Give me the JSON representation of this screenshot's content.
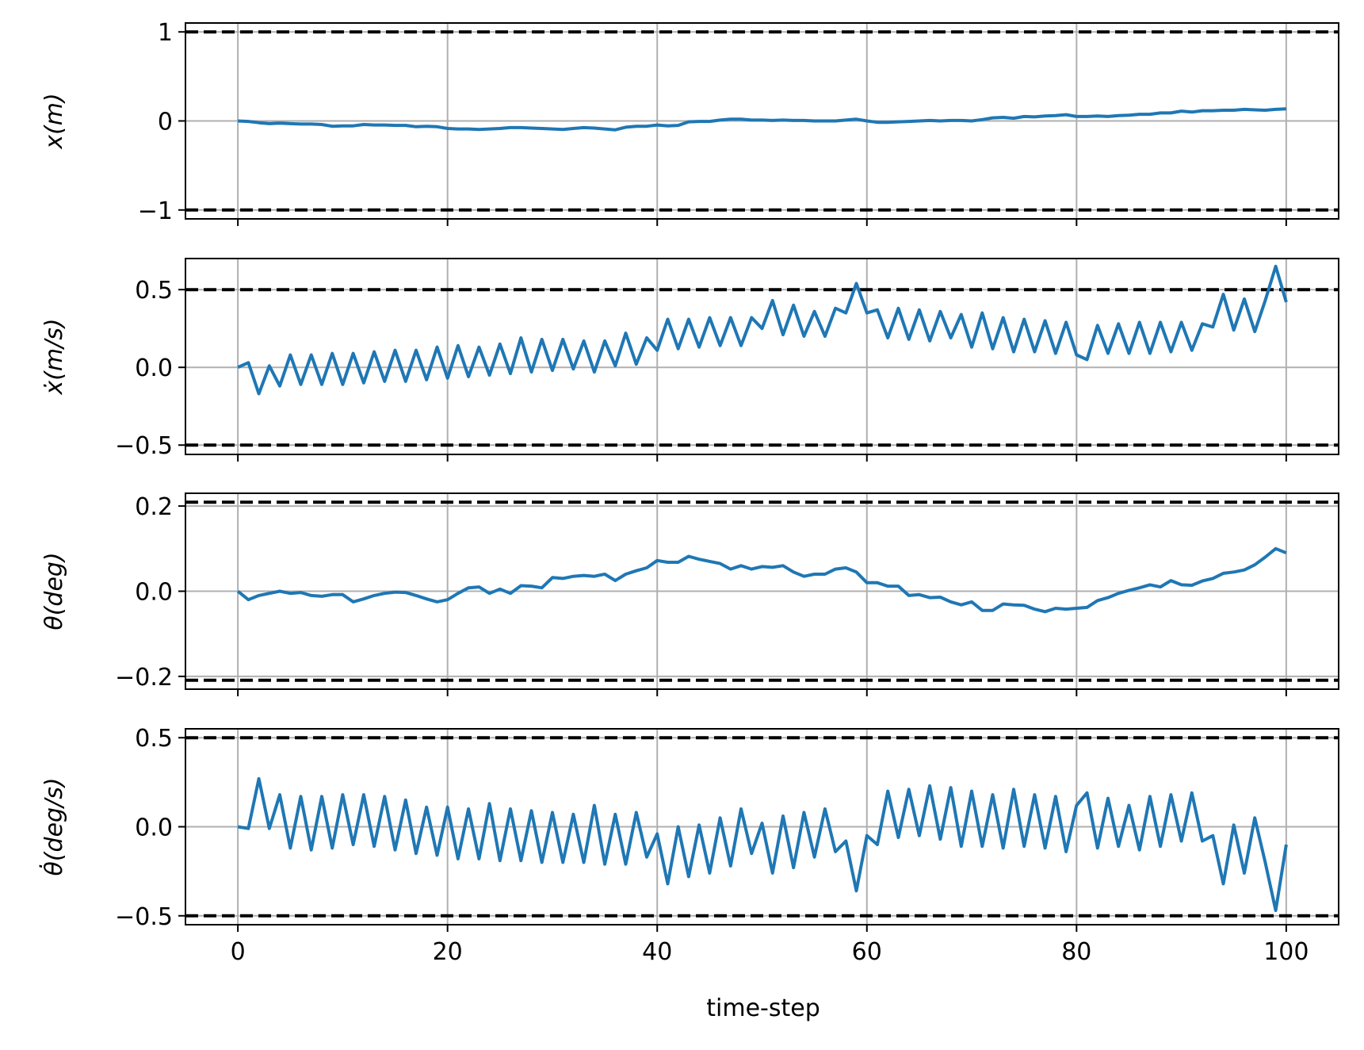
{
  "colors": {
    "series": "#1f77b4",
    "bound": "#000000",
    "grid": "#b0b0b0"
  },
  "chart_data": [
    {
      "type": "line",
      "ylabel": "x(m)",
      "ylim": [
        -1.1,
        1.1
      ],
      "yticks": [
        -1,
        0,
        1
      ],
      "ytick_labels": [
        "−1",
        "0",
        "1"
      ],
      "bounds": [
        1,
        -1
      ],
      "grid": true,
      "x": [
        0,
        1,
        2,
        3,
        4,
        5,
        6,
        7,
        8,
        9,
        10,
        11,
        12,
        13,
        14,
        15,
        16,
        17,
        18,
        19,
        20,
        21,
        22,
        23,
        24,
        25,
        26,
        27,
        28,
        29,
        30,
        31,
        32,
        33,
        34,
        35,
        36,
        37,
        38,
        39,
        40,
        41,
        42,
        43,
        44,
        45,
        46,
        47,
        48,
        49,
        50,
        51,
        52,
        53,
        54,
        55,
        56,
        57,
        58,
        59,
        60,
        61,
        62,
        63,
        64,
        65,
        66,
        67,
        68,
        69,
        70,
        71,
        72,
        73,
        74,
        75,
        76,
        77,
        78,
        79,
        80,
        81,
        82,
        83,
        84,
        85,
        86,
        87,
        88,
        89,
        90,
        91,
        92,
        93,
        94,
        95,
        96,
        97,
        98,
        99,
        100
      ],
      "values": [
        0.0,
        -0.005,
        -0.02,
        -0.03,
        -0.025,
        -0.03,
        -0.035,
        -0.035,
        -0.04,
        -0.06,
        -0.055,
        -0.055,
        -0.04,
        -0.045,
        -0.045,
        -0.05,
        -0.05,
        -0.065,
        -0.06,
        -0.065,
        -0.085,
        -0.09,
        -0.09,
        -0.095,
        -0.09,
        -0.085,
        -0.075,
        -0.075,
        -0.08,
        -0.085,
        -0.09,
        -0.095,
        -0.085,
        -0.075,
        -0.08,
        -0.09,
        -0.1,
        -0.07,
        -0.06,
        -0.06,
        -0.045,
        -0.055,
        -0.05,
        -0.01,
        -0.005,
        -0.005,
        0.01,
        0.02,
        0.02,
        0.01,
        0.01,
        0.005,
        0.01,
        0.005,
        0.005,
        0.0,
        0.0,
        0.0,
        0.01,
        0.02,
        0.0,
        -0.015,
        -0.015,
        -0.01,
        -0.005,
        0.0,
        0.005,
        0.0,
        0.005,
        0.005,
        0.0,
        0.015,
        0.035,
        0.04,
        0.03,
        0.05,
        0.045,
        0.055,
        0.06,
        0.07,
        0.05,
        0.05,
        0.055,
        0.05,
        0.06,
        0.065,
        0.075,
        0.075,
        0.09,
        0.09,
        0.11,
        0.1,
        0.115,
        0.115,
        0.12,
        0.12,
        0.13,
        0.125,
        0.12,
        0.13,
        0.135
      ]
    },
    {
      "type": "line",
      "ylabel": "ẋ(m/s)",
      "ylim": [
        -0.56,
        0.7
      ],
      "yticks": [
        -0.5,
        0.0,
        0.5
      ],
      "ytick_labels": [
        "−0.5",
        "0.0",
        "0.5"
      ],
      "bounds": [
        0.5,
        -0.5
      ],
      "grid": true,
      "x": [
        0,
        1,
        2,
        3,
        4,
        5,
        6,
        7,
        8,
        9,
        10,
        11,
        12,
        13,
        14,
        15,
        16,
        17,
        18,
        19,
        20,
        21,
        22,
        23,
        24,
        25,
        26,
        27,
        28,
        29,
        30,
        31,
        32,
        33,
        34,
        35,
        36,
        37,
        38,
        39,
        40,
        41,
        42,
        43,
        44,
        45,
        46,
        47,
        48,
        49,
        50,
        51,
        52,
        53,
        54,
        55,
        56,
        57,
        58,
        59,
        60,
        61,
        62,
        63,
        64,
        65,
        66,
        67,
        68,
        69,
        70,
        71,
        72,
        73,
        74,
        75,
        76,
        77,
        78,
        79,
        80,
        81,
        82,
        83,
        84,
        85,
        86,
        87,
        88,
        89,
        90,
        91,
        92,
        93,
        94,
        95,
        96,
        97,
        98,
        99,
        100
      ],
      "values": [
        0.0,
        0.03,
        -0.17,
        0.01,
        -0.12,
        0.08,
        -0.11,
        0.08,
        -0.11,
        0.09,
        -0.11,
        0.09,
        -0.1,
        0.1,
        -0.09,
        0.11,
        -0.09,
        0.11,
        -0.08,
        0.13,
        -0.07,
        0.14,
        -0.06,
        0.13,
        -0.05,
        0.15,
        -0.04,
        0.19,
        -0.03,
        0.18,
        -0.02,
        0.18,
        -0.01,
        0.17,
        -0.03,
        0.17,
        0.01,
        0.22,
        0.02,
        0.19,
        0.11,
        0.31,
        0.12,
        0.31,
        0.13,
        0.32,
        0.14,
        0.32,
        0.14,
        0.32,
        0.25,
        0.43,
        0.21,
        0.4,
        0.2,
        0.36,
        0.2,
        0.38,
        0.35,
        0.54,
        0.35,
        0.37,
        0.19,
        0.38,
        0.18,
        0.37,
        0.17,
        0.36,
        0.19,
        0.34,
        0.13,
        0.35,
        0.12,
        0.32,
        0.1,
        0.31,
        0.1,
        0.3,
        0.09,
        0.29,
        0.08,
        0.05,
        0.27,
        0.09,
        0.28,
        0.09,
        0.29,
        0.09,
        0.29,
        0.1,
        0.29,
        0.11,
        0.28,
        0.26,
        0.47,
        0.24,
        0.44,
        0.23,
        0.43,
        0.65,
        0.42
      ]
    },
    {
      "type": "line",
      "ylabel": "θ(deg)",
      "ylim": [
        -0.23,
        0.23
      ],
      "yticks": [
        -0.2,
        0.0,
        0.2
      ],
      "ytick_labels": [
        "−0.2",
        "0.0",
        "0.2"
      ],
      "bounds": [
        0.209,
        -0.209
      ],
      "grid": true,
      "x": [
        0,
        1,
        2,
        3,
        4,
        5,
        6,
        7,
        8,
        9,
        10,
        11,
        12,
        13,
        14,
        15,
        16,
        17,
        18,
        19,
        20,
        21,
        22,
        23,
        24,
        25,
        26,
        27,
        28,
        29,
        30,
        31,
        32,
        33,
        34,
        35,
        36,
        37,
        38,
        39,
        40,
        41,
        42,
        43,
        44,
        45,
        46,
        47,
        48,
        49,
        50,
        51,
        52,
        53,
        54,
        55,
        56,
        57,
        58,
        59,
        60,
        61,
        62,
        63,
        64,
        65,
        66,
        67,
        68,
        69,
        70,
        71,
        72,
        73,
        74,
        75,
        76,
        77,
        78,
        79,
        80,
        81,
        82,
        83,
        84,
        85,
        86,
        87,
        88,
        89,
        90,
        91,
        92,
        93,
        94,
        95,
        96,
        97,
        98,
        99,
        100
      ],
      "values": [
        0.0,
        -0.02,
        -0.01,
        -0.005,
        0.0,
        -0.005,
        -0.003,
        -0.01,
        -0.012,
        -0.008,
        -0.008,
        -0.025,
        -0.018,
        -0.01,
        -0.005,
        -0.002,
        -0.003,
        -0.01,
        -0.018,
        -0.025,
        -0.02,
        -0.005,
        0.008,
        0.01,
        -0.005,
        0.005,
        -0.005,
        0.013,
        0.012,
        0.008,
        0.032,
        0.03,
        0.035,
        0.037,
        0.035,
        0.04,
        0.025,
        0.04,
        0.048,
        0.055,
        0.072,
        0.068,
        0.068,
        0.082,
        0.075,
        0.07,
        0.065,
        0.052,
        0.06,
        0.052,
        0.058,
        0.056,
        0.06,
        0.045,
        0.035,
        0.04,
        0.04,
        0.052,
        0.055,
        0.045,
        0.02,
        0.02,
        0.012,
        0.012,
        -0.01,
        -0.008,
        -0.015,
        -0.014,
        -0.025,
        -0.032,
        -0.025,
        -0.045,
        -0.045,
        -0.03,
        -0.032,
        -0.033,
        -0.042,
        -0.048,
        -0.04,
        -0.042,
        -0.04,
        -0.038,
        -0.022,
        -0.015,
        -0.005,
        0.002,
        0.008,
        0.015,
        0.01,
        0.025,
        0.015,
        0.014,
        0.024,
        0.03,
        0.042,
        0.045,
        0.05,
        0.062,
        0.08,
        0.1,
        0.09
      ]
    },
    {
      "type": "line",
      "ylabel": "θ̇(deg/s)",
      "ylim": [
        -0.55,
        0.55
      ],
      "yticks": [
        -0.5,
        0.0,
        0.5
      ],
      "ytick_labels": [
        "−0.5",
        "0.0",
        "0.5"
      ],
      "bounds": [
        0.5,
        -0.5
      ],
      "grid": true,
      "xlabel": "time-step",
      "xlim": [
        -5,
        105
      ],
      "xticks": [
        0,
        20,
        40,
        60,
        80,
        100
      ],
      "xtick_labels": [
        "0",
        "20",
        "40",
        "60",
        "80",
        "100"
      ],
      "x": [
        0,
        1,
        2,
        3,
        4,
        5,
        6,
        7,
        8,
        9,
        10,
        11,
        12,
        13,
        14,
        15,
        16,
        17,
        18,
        19,
        20,
        21,
        22,
        23,
        24,
        25,
        26,
        27,
        28,
        29,
        30,
        31,
        32,
        33,
        34,
        35,
        36,
        37,
        38,
        39,
        40,
        41,
        42,
        43,
        44,
        45,
        46,
        47,
        48,
        49,
        50,
        51,
        52,
        53,
        54,
        55,
        56,
        57,
        58,
        59,
        60,
        61,
        62,
        63,
        64,
        65,
        66,
        67,
        68,
        69,
        70,
        71,
        72,
        73,
        74,
        75,
        76,
        77,
        78,
        79,
        80,
        81,
        82,
        83,
        84,
        85,
        86,
        87,
        88,
        89,
        90,
        91,
        92,
        93,
        94,
        95,
        96,
        97,
        98,
        99,
        100
      ],
      "values": [
        0.0,
        -0.01,
        0.27,
        -0.01,
        0.18,
        -0.12,
        0.17,
        -0.13,
        0.17,
        -0.12,
        0.18,
        -0.1,
        0.18,
        -0.11,
        0.17,
        -0.13,
        0.15,
        -0.15,
        0.11,
        -0.16,
        0.11,
        -0.18,
        0.1,
        -0.18,
        0.13,
        -0.19,
        0.1,
        -0.19,
        0.09,
        -0.2,
        0.08,
        -0.2,
        0.07,
        -0.2,
        0.12,
        -0.21,
        0.07,
        -0.21,
        0.08,
        -0.17,
        -0.04,
        -0.32,
        0.0,
        -0.28,
        0.01,
        -0.26,
        0.05,
        -0.22,
        0.1,
        -0.15,
        0.02,
        -0.26,
        0.06,
        -0.23,
        0.08,
        -0.17,
        0.1,
        -0.14,
        -0.08,
        -0.36,
        -0.05,
        -0.1,
        0.2,
        -0.06,
        0.21,
        -0.05,
        0.23,
        -0.07,
        0.22,
        -0.11,
        0.2,
        -0.11,
        0.18,
        -0.12,
        0.21,
        -0.11,
        0.18,
        -0.12,
        0.17,
        -0.14,
        0.12,
        0.19,
        -0.12,
        0.16,
        -0.11,
        0.12,
        -0.13,
        0.17,
        -0.11,
        0.18,
        -0.08,
        0.19,
        -0.08,
        -0.05,
        -0.32,
        0.01,
        -0.26,
        0.05,
        -0.2,
        -0.47,
        -0.1
      ]
    }
  ]
}
